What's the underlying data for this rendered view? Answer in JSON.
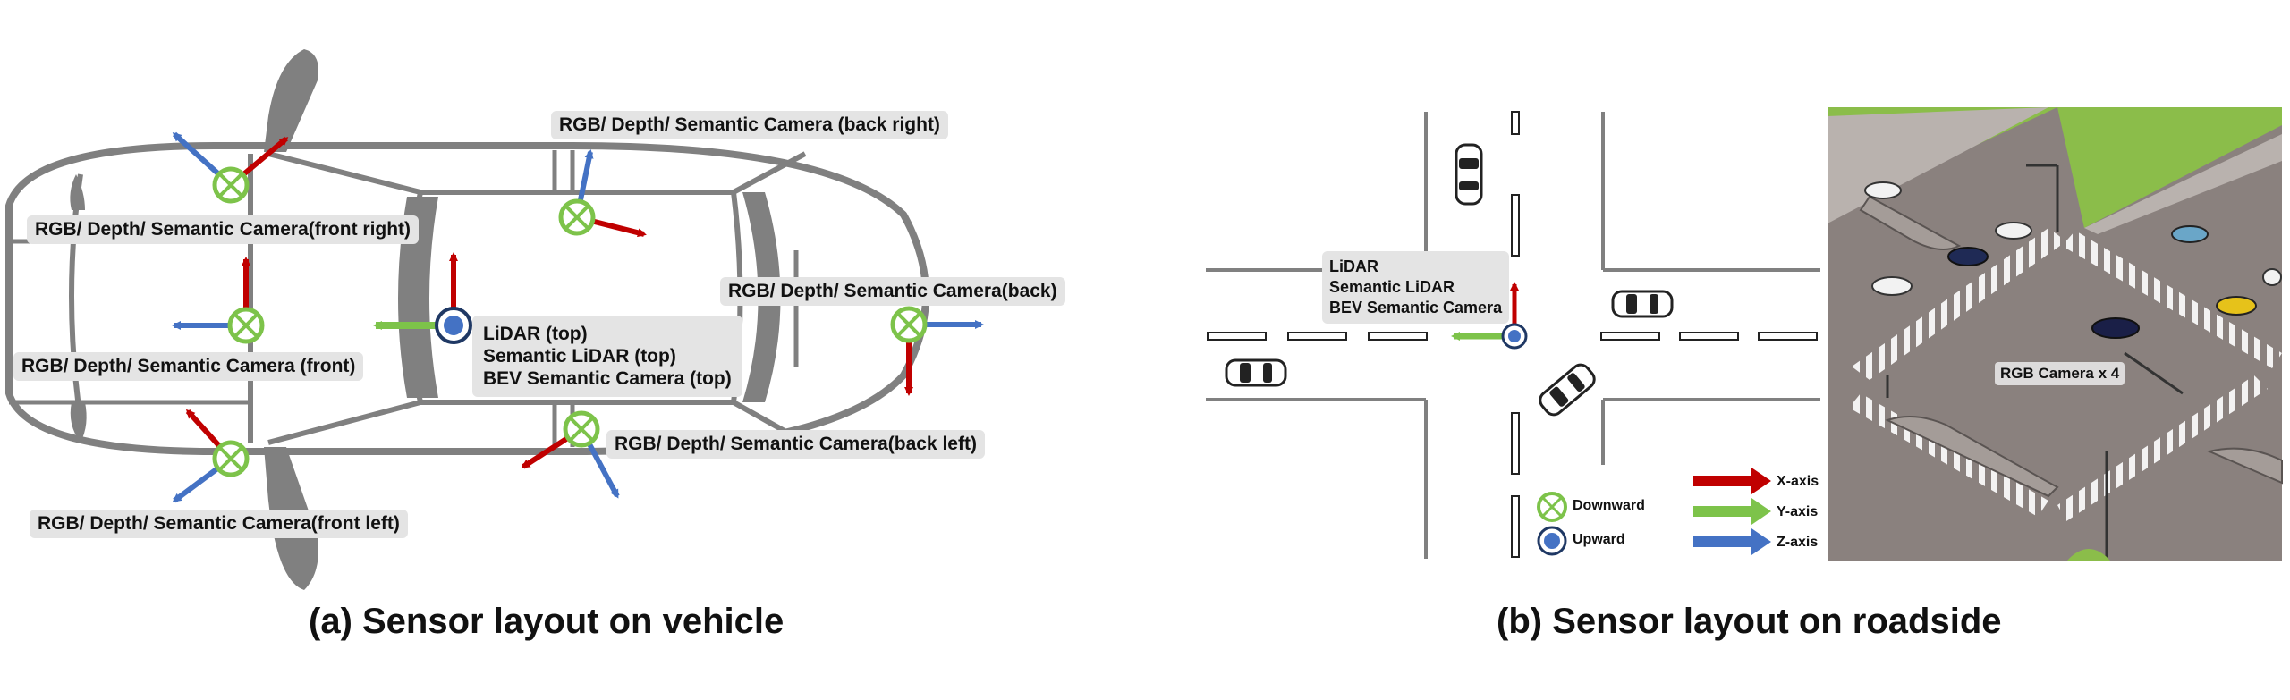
{
  "panel_a": {
    "caption": "(a) Sensor layout on vehicle",
    "labels": {
      "front_right": "RGB/ Depth/ Semantic Camera(front right)",
      "front": "RGB/ Depth/ Semantic Camera (front)",
      "front_left": "RGB/ Depth/ Semantic Camera(front left)",
      "back_right": "RGB/ Depth/ Semantic Camera (back right)",
      "back": "RGB/ Depth/ Semantic Camera(back)",
      "back_left": "RGB/ Depth/ Semantic Camera(back left)",
      "top_line1": "LiDAR (top)",
      "top_line2": "Semantic LiDAR (top)",
      "top_line3": "BEV Semantic Camera (top)"
    }
  },
  "panel_b": {
    "caption": "(b) Sensor layout on roadside",
    "roadside_line1": "LiDAR",
    "roadside_line2": "Semantic LiDAR",
    "roadside_line3": "BEV Semantic Camera",
    "legend": {
      "downward": "Downward",
      "upward": "Upward",
      "x_axis": "X-axis",
      "y_axis": "Y-axis",
      "z_axis": "Z-axis"
    },
    "photo_label": "RGB Camera x 4"
  },
  "colors": {
    "x_axis": "#c00000",
    "y_axis": "#7dc34a",
    "z_axis": "#4472c4",
    "vehicle_outline": "#808080",
    "label_bg": "#e4e4e4"
  }
}
